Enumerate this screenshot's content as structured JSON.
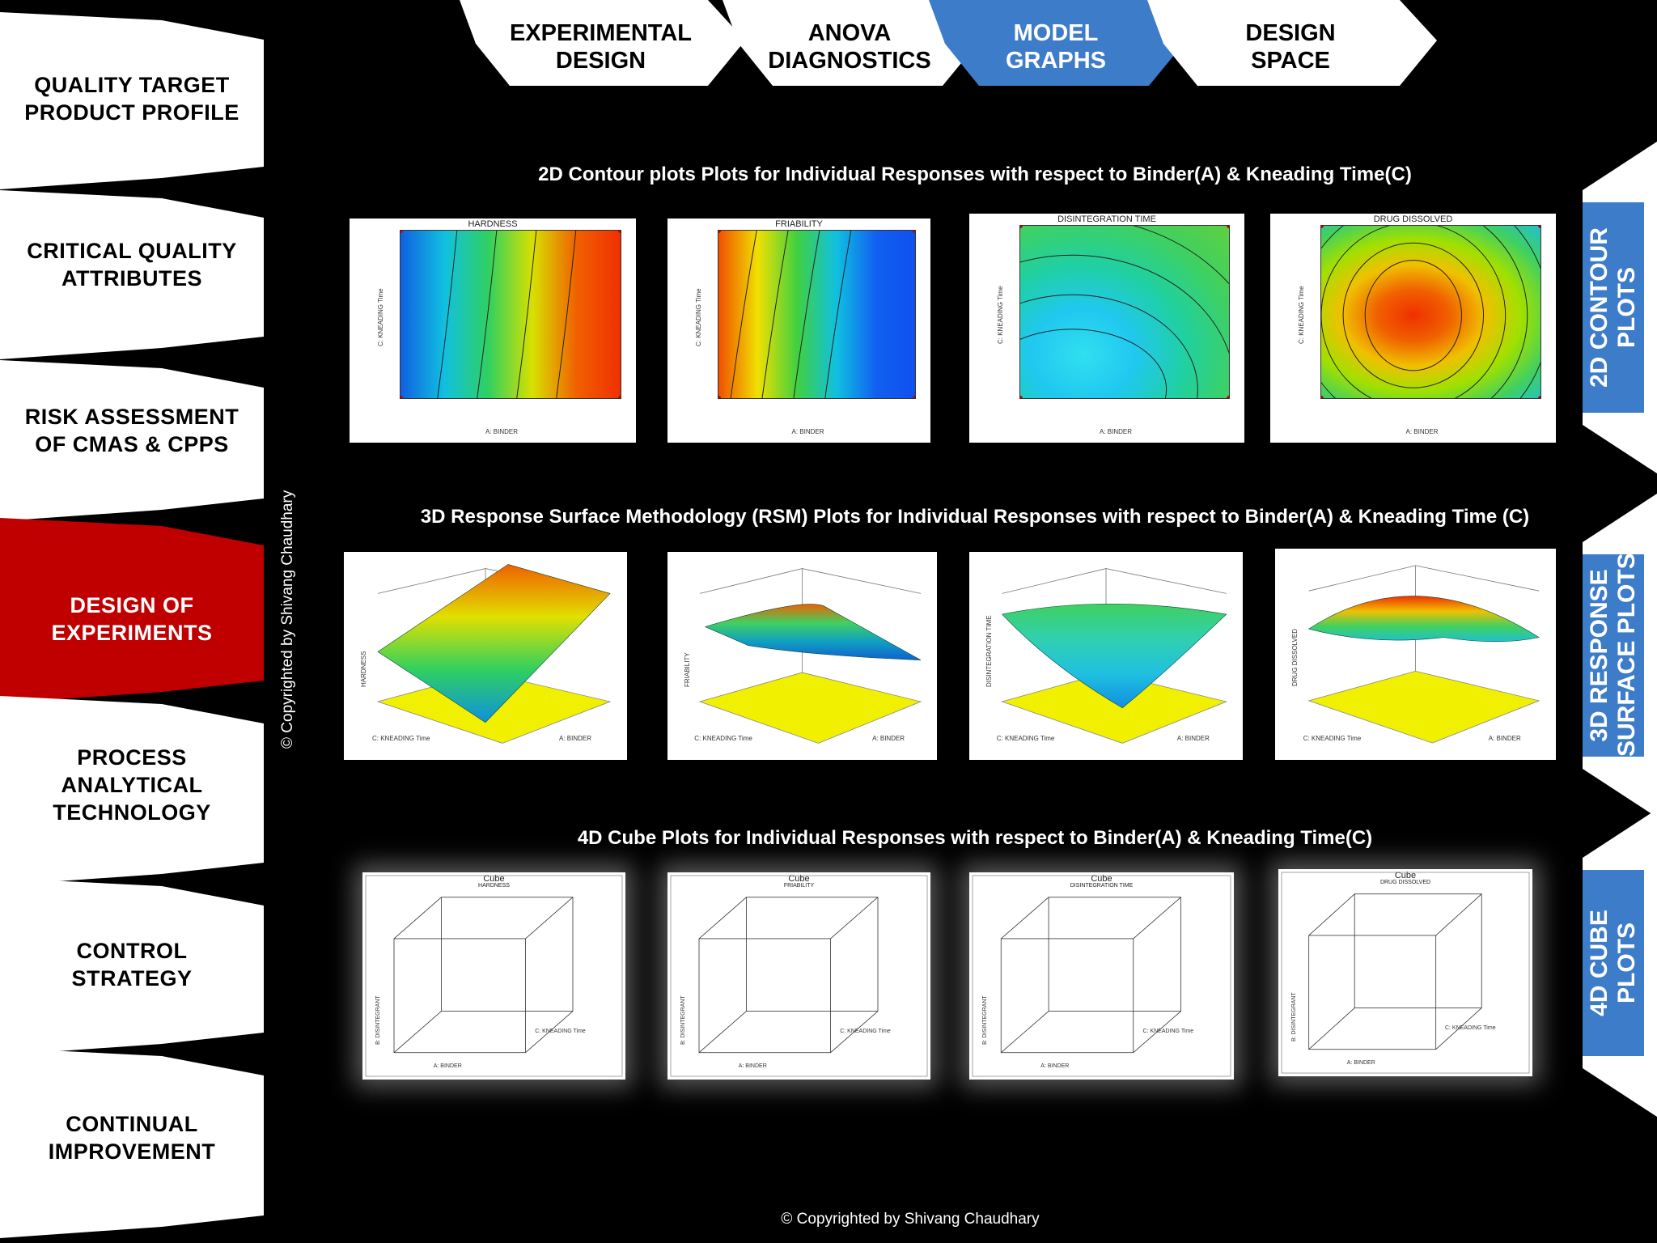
{
  "left_nav": [
    {
      "lines": [
        "QUALITY TARGET",
        "PRODUCT PROFILE"
      ],
      "active": false
    },
    {
      "lines": [
        "CRITICAL QUALITY",
        "ATTRIBUTES"
      ],
      "active": false
    },
    {
      "lines": [
        "RISK ASSESSMENT",
        "OF CMAS & CPPS"
      ],
      "active": false
    },
    {
      "lines": [
        "DESIGN OF",
        "EXPERIMENTS"
      ],
      "active": true
    },
    {
      "lines": [
        "PROCESS",
        "ANALYTICAL",
        "TECHNOLOGY"
      ],
      "active": false
    },
    {
      "lines": [
        "CONTROL",
        "STRATEGY"
      ],
      "active": false
    },
    {
      "lines": [
        "CONTINUAL",
        "IMPROVEMENT"
      ],
      "active": false
    }
  ],
  "top_tabs": [
    {
      "lines": [
        "EXPERIMENTAL",
        "DESIGN"
      ],
      "active": false
    },
    {
      "lines": [
        "ANOVA",
        "DIAGNOSTICS"
      ],
      "active": false
    },
    {
      "lines": [
        "MODEL",
        "GRAPHS"
      ],
      "active": true
    },
    {
      "lines": [
        "DESIGN",
        "SPACE"
      ],
      "active": false
    }
  ],
  "right_tabs": [
    {
      "lines": [
        "2D CONTOUR",
        "PLOTS"
      ]
    },
    {
      "lines": [
        "3D RESPONSE",
        "SURFACE PLOTS"
      ]
    },
    {
      "lines": [
        "4D CUBE",
        "PLOTS"
      ]
    }
  ],
  "sections": {
    "contour_title": "2D Contour plots Plots for Individual Responses with respect to Binder(A) & Kneading Time(C)",
    "rsm_title": "3D Response Surface Methodology (RSM) Plots for Individual Responses with respect to Binder(A) &  Kneading Time (C)",
    "cube_title": "4D Cube Plots for Individual Responses with respect to Binder(A) & Kneading Time(C)"
  },
  "contour_plots": [
    {
      "title": "HARDNESS",
      "xlabel": "A: BINDER",
      "ylabel": "C: KNEADING Time"
    },
    {
      "title": "FRIABILITY",
      "xlabel": "A: BINDER",
      "ylabel": "C: KNEADING Time"
    },
    {
      "title": "DISINTEGRATION TIME",
      "xlabel": "A: BINDER",
      "ylabel": "C: KNEADING Time"
    },
    {
      "title": "DRUG DISSOLVED",
      "xlabel": "A: BINDER",
      "ylabel": "C: KNEADING Time"
    }
  ],
  "rsm_plots": [
    {
      "zlabel": "HARDNESS",
      "xlabel": "A: BINDER",
      "ylabel": "C: KNEADING Time"
    },
    {
      "zlabel": "FRIABILITY",
      "xlabel": "A: BINDER",
      "ylabel": "C: KNEADING Time"
    },
    {
      "zlabel": "DISINTEGRATION TIME",
      "xlabel": "A: BINDER",
      "ylabel": "C: KNEADING Time"
    },
    {
      "zlabel": "DRUG DISSOLVED",
      "xlabel": "A: BINDER",
      "ylabel": "C: KNEADING Time"
    }
  ],
  "cube_plots": [
    {
      "title": "Cube",
      "subtitle": "HARDNESS",
      "xlabel": "A: BINDER",
      "zlabel": "C: KNEADING Time",
      "ylabel": "B: DISINTEGRANT"
    },
    {
      "title": "Cube",
      "subtitle": "FRIABILITY",
      "xlabel": "A: BINDER",
      "zlabel": "C: KNEADING Time",
      "ylabel": "B: DISINTEGRANT"
    },
    {
      "title": "Cube",
      "subtitle": "DISINTEGRATION TIME",
      "xlabel": "A: BINDER",
      "zlabel": "C: KNEADING Time",
      "ylabel": "B: DISINTEGRANT"
    },
    {
      "title": "Cube",
      "subtitle": "DRUG DISSOLVED",
      "xlabel": "A: BINDER",
      "zlabel": "C: KNEADING Time",
      "ylabel": "B: DISINTEGRANT"
    }
  ],
  "copyright_vertical": "© Copyrighted by Shivang Chaudhary",
  "copyright_footer": "© Copyrighted by Shivang Chaudhary",
  "colors": {
    "active_red": "#c00000",
    "active_blue": "#3d7cc9",
    "panel": "#ffffff"
  }
}
